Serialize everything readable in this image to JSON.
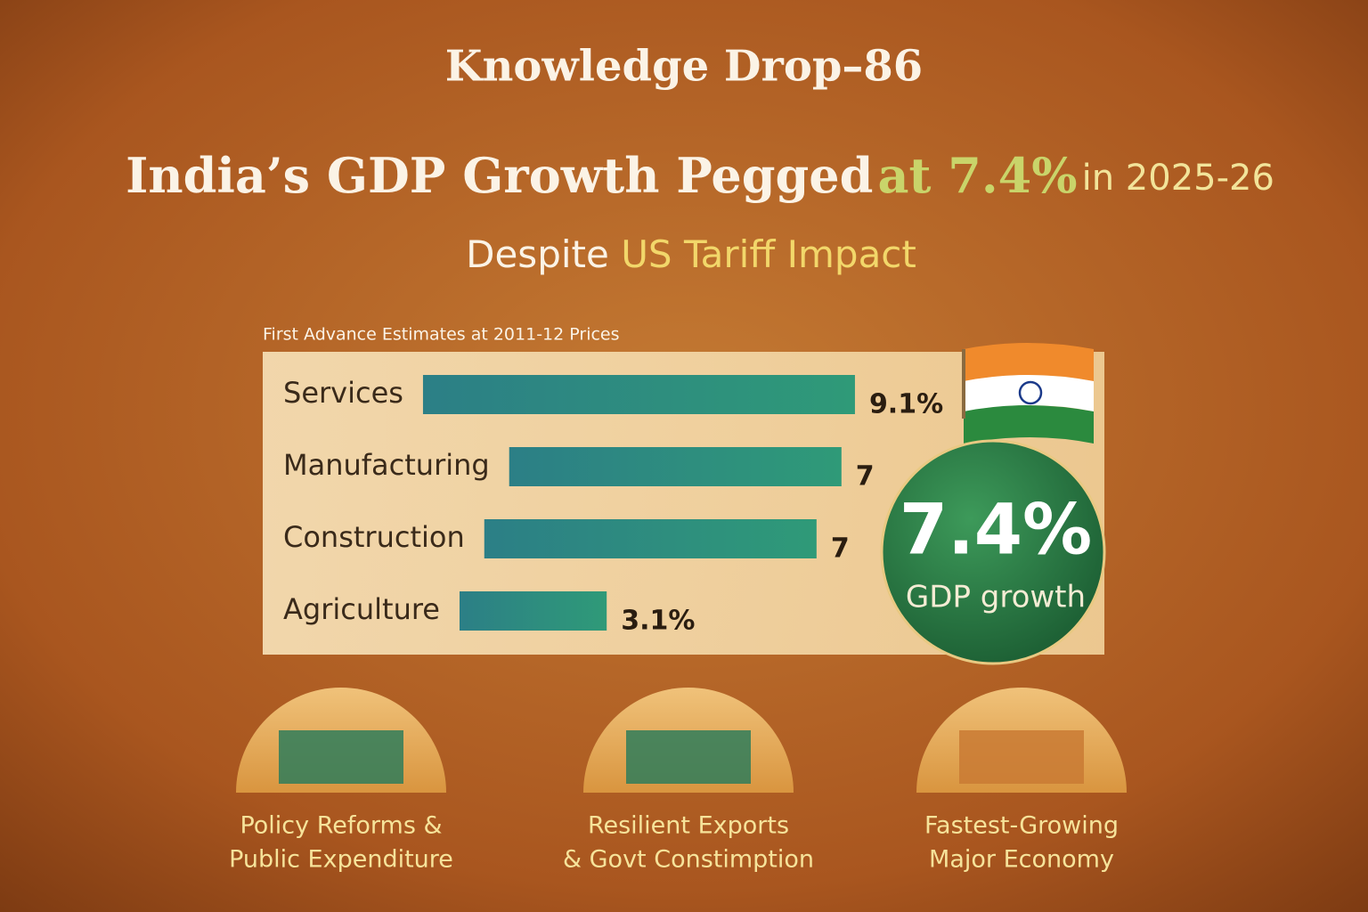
{
  "header": {
    "kicker": "Knowledge Drop–86",
    "title_parts": [
      "India’s GDP Growth Pegged",
      "at 7.4%",
      "in 2025-26"
    ],
    "subtitle_parts": [
      "Despite",
      "US Tariff Impact"
    ]
  },
  "chart_data": {
    "type": "bar",
    "orientation": "horizontal",
    "title": "First Advance Estimates at 2011-12 Prices",
    "categories": [
      "Services",
      "Manufacturing",
      "Construction",
      "Agriculture"
    ],
    "values": [
      9.1,
      7,
      7,
      3.1
    ],
    "value_labels": [
      "9.1%",
      "7",
      "7",
      "3.1%"
    ],
    "color": "#2a8a78"
  },
  "badge": {
    "value": "7.4%",
    "label": "GDP growth"
  },
  "features": [
    {
      "lines": [
        "Policy Reforms &",
        "Public Expenditure"
      ]
    },
    {
      "lines": [
        "Resilient Exports",
        "& Govt Constimption"
      ]
    },
    {
      "lines": [
        "Fastest-Growing",
        "Major Economy"
      ]
    }
  ]
}
